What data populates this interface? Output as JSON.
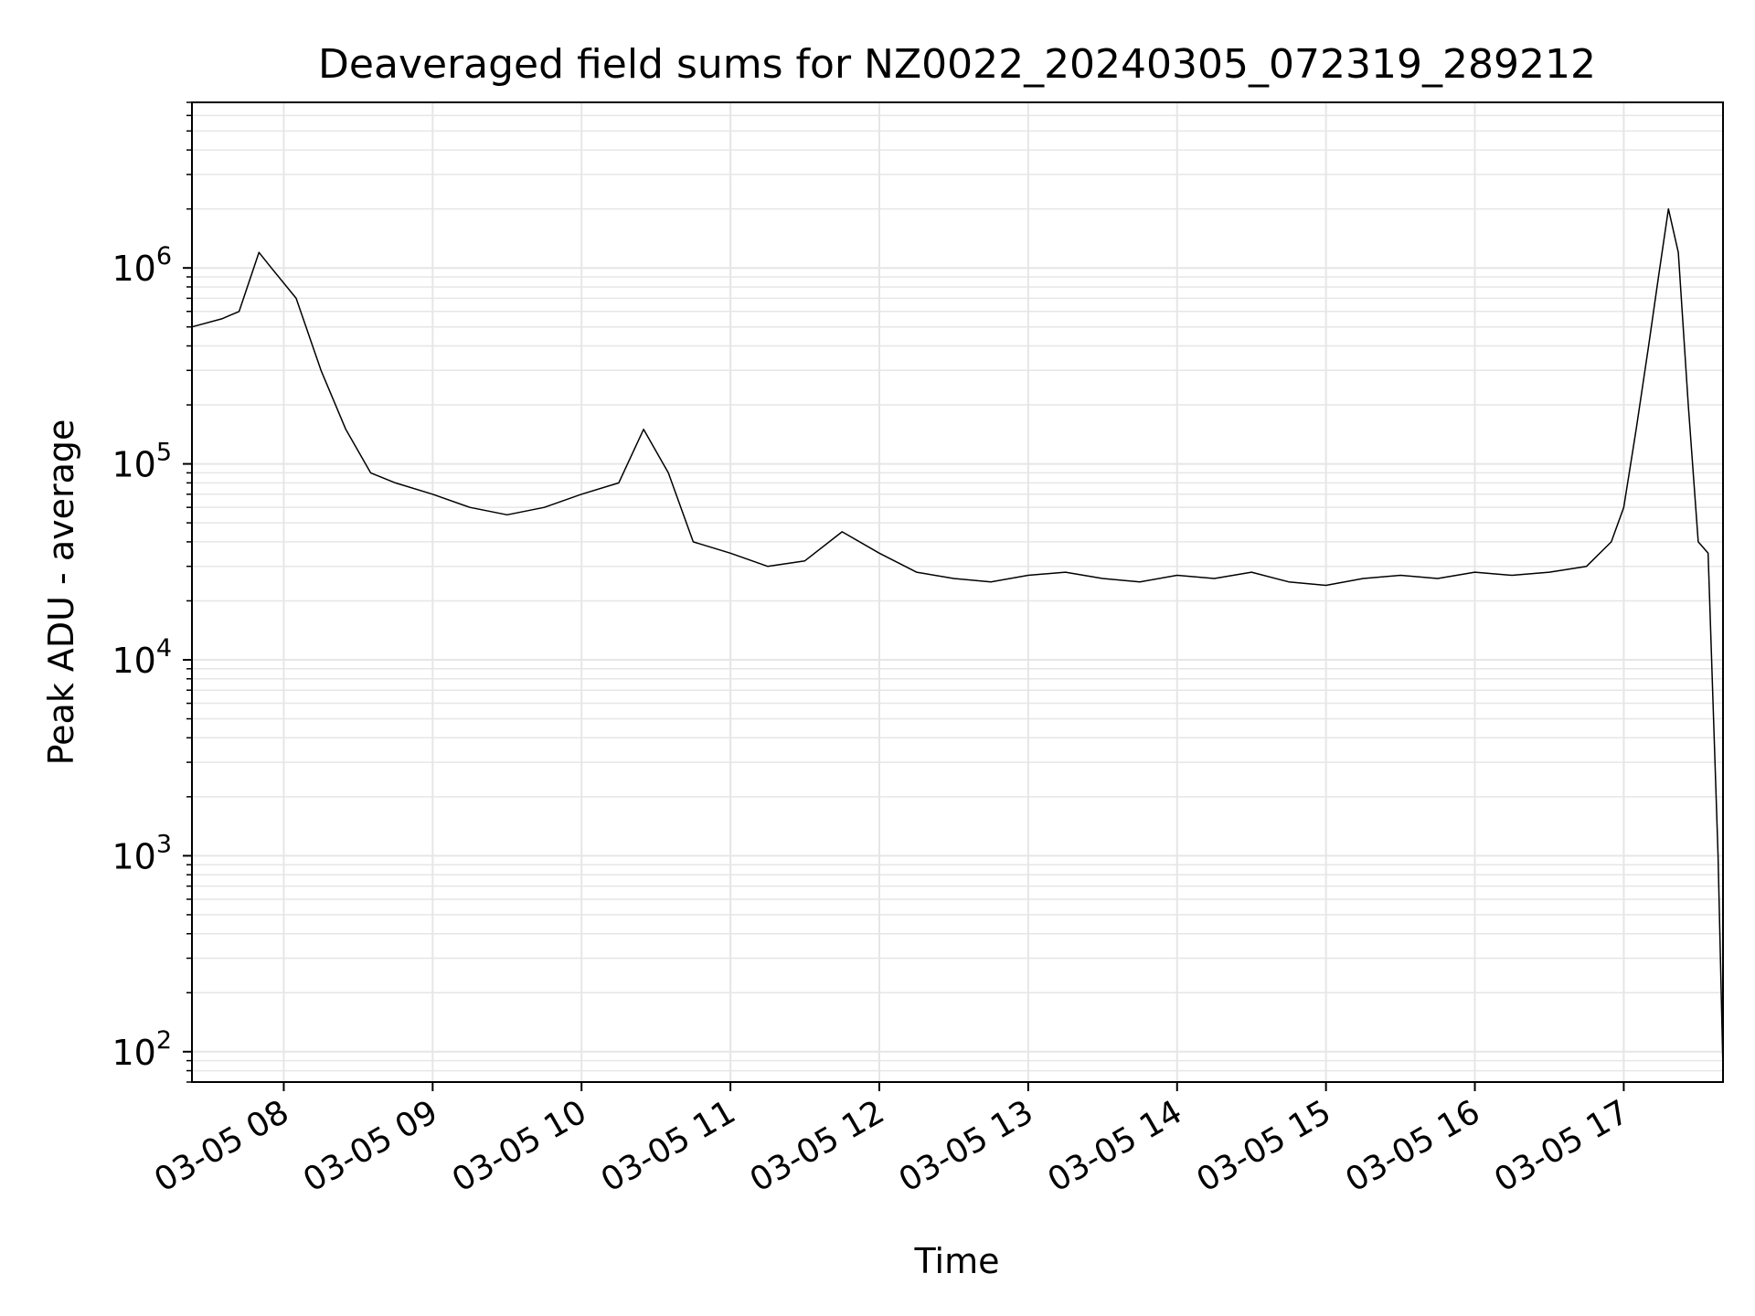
{
  "chart_data": {
    "type": "line",
    "title": "Deaveraged field sums for NZ0022_20240305_072319_289212",
    "xlabel": "Time",
    "ylabel": "Peak ADU - average",
    "yscale": "log",
    "grid": true,
    "legend": "none",
    "xlim": [
      "2024-03-05 07:23",
      "2024-03-05 17:40"
    ],
    "ylim": [
      70,
      7000000
    ],
    "x_ticks": [
      {
        "t": "2024-03-05 08:00",
        "label": "03-05 08"
      },
      {
        "t": "2024-03-05 09:00",
        "label": "03-05 09"
      },
      {
        "t": "2024-03-05 10:00",
        "label": "03-05 10"
      },
      {
        "t": "2024-03-05 11:00",
        "label": "03-05 11"
      },
      {
        "t": "2024-03-05 12:00",
        "label": "03-05 12"
      },
      {
        "t": "2024-03-05 13:00",
        "label": "03-05 13"
      },
      {
        "t": "2024-03-05 14:00",
        "label": "03-05 14"
      },
      {
        "t": "2024-03-05 15:00",
        "label": "03-05 15"
      },
      {
        "t": "2024-03-05 16:00",
        "label": "03-05 16"
      },
      {
        "t": "2024-03-05 17:00",
        "label": "03-05 17"
      }
    ],
    "y_ticks": [
      {
        "value": 100,
        "base": "10",
        "exp": "2"
      },
      {
        "value": 1000,
        "base": "10",
        "exp": "3"
      },
      {
        "value": 10000,
        "base": "10",
        "exp": "4"
      },
      {
        "value": 100000,
        "base": "10",
        "exp": "5"
      },
      {
        "value": 1000000,
        "base": "10",
        "exp": "6"
      }
    ],
    "series_color": "#000000",
    "series": [
      {
        "x": [
          "2024-03-05 07:23",
          "2024-03-05 07:35",
          "2024-03-05 07:42",
          "2024-03-05 07:50",
          "2024-03-05 07:55",
          "2024-03-05 08:05",
          "2024-03-05 08:15",
          "2024-03-05 08:25",
          "2024-03-05 08:35",
          "2024-03-05 08:45",
          "2024-03-05 09:00",
          "2024-03-05 09:15",
          "2024-03-05 09:30",
          "2024-03-05 09:45",
          "2024-03-05 10:00",
          "2024-03-05 10:15",
          "2024-03-05 10:25",
          "2024-03-05 10:35",
          "2024-03-05 10:45",
          "2024-03-05 11:00",
          "2024-03-05 11:15",
          "2024-03-05 11:30",
          "2024-03-05 11:45",
          "2024-03-05 12:00",
          "2024-03-05 12:15",
          "2024-03-05 12:30",
          "2024-03-05 12:45",
          "2024-03-05 13:00",
          "2024-03-05 13:15",
          "2024-03-05 13:30",
          "2024-03-05 13:45",
          "2024-03-05 14:00",
          "2024-03-05 14:15",
          "2024-03-05 14:30",
          "2024-03-05 14:45",
          "2024-03-05 15:00",
          "2024-03-05 15:15",
          "2024-03-05 15:30",
          "2024-03-05 15:45",
          "2024-03-05 16:00",
          "2024-03-05 16:15",
          "2024-03-05 16:30",
          "2024-03-05 16:45",
          "2024-03-05 16:55",
          "2024-03-05 17:00",
          "2024-03-05 17:05",
          "2024-03-05 17:10",
          "2024-03-05 17:14",
          "2024-03-05 17:18",
          "2024-03-05 17:22",
          "2024-03-05 17:26",
          "2024-03-05 17:30",
          "2024-03-05 17:34",
          "2024-03-05 17:38",
          "2024-03-05 17:40"
        ],
        "y": [
          500000,
          550000,
          600000,
          1200000,
          1000000,
          700000,
          300000,
          150000,
          90000,
          80000,
          70000,
          60000,
          55000,
          60000,
          70000,
          80000,
          150000,
          90000,
          40000,
          35000,
          30000,
          32000,
          45000,
          35000,
          28000,
          26000,
          25000,
          27000,
          28000,
          26000,
          25000,
          27000,
          26000,
          28000,
          25000,
          24000,
          26000,
          27000,
          26000,
          28000,
          27000,
          28000,
          30000,
          40000,
          60000,
          150000,
          400000,
          900000,
          2000000,
          1200000,
          200000,
          40000,
          35000,
          1000,
          80
        ]
      }
    ]
  }
}
